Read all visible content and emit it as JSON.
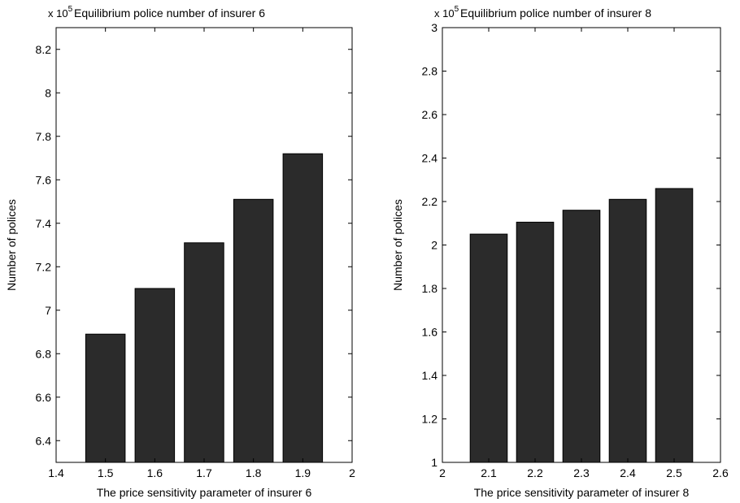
{
  "chart_data": [
    {
      "type": "bar",
      "title": "Equilibrium police number of insurer 6",
      "scale_label": {
        "base": "x 10",
        "exponent": "5"
      },
      "xlabel": "The price sensitivity parameter of insurer 6",
      "ylabel": "Number of polices",
      "x": [
        1.5,
        1.6,
        1.7,
        1.8,
        1.9
      ],
      "values": [
        6.89,
        7.1,
        7.31,
        7.51,
        7.72
      ],
      "xlim": [
        1.4,
        2.0
      ],
      "ylim": [
        6.3,
        8.3
      ],
      "xticks": [
        "1.4",
        "1.5",
        "1.6",
        "1.7",
        "1.8",
        "1.9",
        "2"
      ],
      "yticks": [
        "6.4",
        "6.6",
        "6.8",
        "7",
        "7.2",
        "7.4",
        "7.6",
        "7.8",
        "8",
        "8.2"
      ],
      "bar_color": "#2b2b2b",
      "grid": false
    },
    {
      "type": "bar",
      "title": "Equilibrium police number of insurer 8",
      "scale_label": {
        "base": "x 10",
        "exponent": "5"
      },
      "xlabel": "The price sensitivity parameter of insurer 8",
      "ylabel": "Number of polices",
      "x": [
        2.1,
        2.2,
        2.3,
        2.4,
        2.5
      ],
      "values": [
        2.05,
        2.105,
        2.16,
        2.21,
        2.26
      ],
      "xlim": [
        2.0,
        2.6
      ],
      "ylim": [
        1.0,
        3.0
      ],
      "xticks": [
        "2",
        "2.1",
        "2.2",
        "2.3",
        "2.4",
        "2.5",
        "2.6"
      ],
      "yticks": [
        "1",
        "1.2",
        "1.4",
        "1.6",
        "1.8",
        "2",
        "2.2",
        "2.4",
        "2.6",
        "2.8",
        "3"
      ],
      "bar_color": "#2b2b2b",
      "grid": false
    }
  ]
}
